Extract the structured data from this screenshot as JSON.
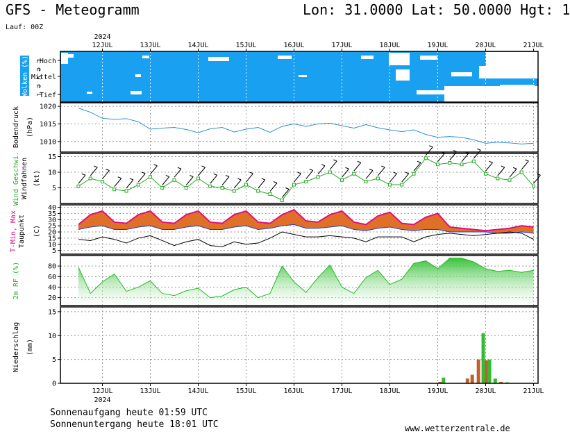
{
  "header": {
    "title": "GFS - Meteogramm",
    "coords": "Lon: 31.0000 Lat: 50.0000 Hgt: 1",
    "run": "Lauf: 00Z"
  },
  "footer": {
    "sunrise": "Sonnenaufgang heute 01:59 UTC",
    "sunset": "Sonnenuntergang heute 18:01 UTC",
    "site": "www.wetterzentrale.de"
  },
  "colors": {
    "cloud_blue": "#1aa0f0",
    "pressure_line": "#2a8fd8",
    "wind_green": "#22aa22",
    "tmax": "#e0107a",
    "tmin": "#1a3fcf",
    "temp_band": "#e07028",
    "dewpoint": "#000000",
    "rh_green": "#22bb22",
    "precip_green": "#33bb33",
    "precip_brown": "#c0602a"
  },
  "chart_data": {
    "type": "meteogram",
    "year": "2024",
    "x_ticks": [
      "12JUL",
      "13JUL",
      "14JUL",
      "15JUL",
      "16JUL",
      "17JUL",
      "18JUL",
      "19JUL",
      "20JUL",
      "21JUL"
    ],
    "panels": [
      {
        "id": "clouds",
        "ylabel": "Wolken (%)",
        "level_label": "L e v e l",
        "levels": [
          "Hoch",
          "Mittel",
          "Tief"
        ]
      },
      {
        "id": "pressure",
        "ylabel": "Bodendruck",
        "yunit": "(hPa)",
        "ylim": [
          1007,
          1021
        ],
        "yticks": [
          1010,
          1015,
          1020
        ],
        "x": [
          0,
          0.25,
          0.5,
          0.75,
          1,
          1.25,
          1.5,
          1.75,
          2,
          2.25,
          2.5,
          2.75,
          3,
          3.25,
          3.5,
          3.75,
          4,
          4.25,
          4.5,
          4.75,
          5,
          5.25,
          5.5,
          5.75,
          6,
          6.25,
          6.5,
          6.75,
          7,
          7.25,
          7.5,
          7.75,
          8,
          8.25,
          8.5,
          8.75,
          9,
          9.25,
          9.5
        ],
        "y": [
          1019.5,
          1018.3,
          1016.6,
          1016.3,
          1016.5,
          1015.6,
          1013.5,
          1013.8,
          1014.0,
          1013.4,
          1012.5,
          1013.6,
          1014.0,
          1012.7,
          1013.5,
          1014.0,
          1012.6,
          1014.3,
          1015.0,
          1014.3,
          1015.0,
          1015.2,
          1014.5,
          1013.8,
          1014.8,
          1013.9,
          1013.3,
          1012.8,
          1013.3,
          1012.0,
          1011.2,
          1011.4,
          1011.2,
          1010.5,
          1009.5,
          1009.8,
          1009.6,
          1009.3,
          1009.5
        ]
      },
      {
        "id": "wind",
        "ylabel": "Wind Geschwi.",
        "ylabel2": "Windfahnen",
        "yunit": "(kt)",
        "ylim": [
          0,
          16
        ],
        "yticks": [
          5,
          10,
          15
        ],
        "x": [
          0,
          0.25,
          0.5,
          0.75,
          1,
          1.25,
          1.5,
          1.75,
          2,
          2.25,
          2.5,
          2.75,
          3,
          3.25,
          3.5,
          3.75,
          4,
          4.25,
          4.5,
          4.75,
          5,
          5.25,
          5.5,
          5.75,
          6,
          6.25,
          6.5,
          6.75,
          7,
          7.25,
          7.5,
          7.75,
          8,
          8.25,
          8.5,
          8.75,
          9,
          9.25,
          9.5
        ],
        "y": [
          5.5,
          8,
          7,
          4.5,
          4,
          6,
          8.5,
          5,
          7.5,
          5,
          8,
          5.5,
          5,
          4,
          6,
          4,
          3,
          1,
          6,
          7,
          8.5,
          10,
          7.5,
          9.5,
          7,
          8,
          6,
          6,
          9.5,
          14.5,
          12.5,
          13,
          12.5,
          13.5,
          9.5,
          8,
          7.5,
          10,
          5.5
        ]
      },
      {
        "id": "temperature",
        "ylabel": "T-Min, Max",
        "ylabel2": "Taupunkt",
        "yunit": "(C)",
        "ylim": [
          2,
          42
        ],
        "yticks": [
          5,
          10,
          15,
          20,
          25,
          30,
          35,
          40
        ],
        "tmax_x": [
          0,
          0.25,
          0.5,
          0.75,
          1,
          1.25,
          1.5,
          1.75,
          2,
          2.25,
          2.5,
          2.75,
          3,
          3.25,
          3.5,
          3.75,
          4,
          4.25,
          4.5,
          4.75,
          5,
          5.25,
          5.5,
          5.75,
          6,
          6.25,
          6.5,
          6.75,
          7,
          7.25,
          7.5,
          7.75,
          8,
          8.25,
          8.5,
          8.75,
          9,
          9.25,
          9.5
        ],
        "tmax_y": [
          26,
          34,
          37,
          28,
          27,
          34,
          37,
          28,
          27,
          34,
          37,
          28,
          27,
          34,
          37,
          28,
          27,
          34,
          38,
          29,
          28,
          34,
          37,
          28,
          26,
          33,
          36,
          27,
          26,
          32,
          35,
          24,
          23,
          22,
          21,
          22,
          23,
          25,
          24
        ],
        "tmin_y": [
          22,
          24,
          25,
          22,
          22,
          24,
          25,
          22,
          22,
          24,
          25,
          22,
          22,
          24,
          25,
          22,
          23,
          25,
          26,
          23,
          23,
          24,
          25,
          22,
          21,
          23,
          24,
          22,
          21,
          22,
          22,
          20,
          20,
          20,
          20,
          19,
          19,
          20,
          19
        ],
        "dew_y": [
          14,
          13,
          16,
          14,
          11,
          15,
          17,
          13,
          9,
          12,
          14,
          9,
          8,
          12,
          10,
          11,
          15,
          20,
          18,
          16,
          16,
          17,
          16,
          15,
          12,
          16,
          16,
          16,
          12,
          16,
          18,
          19,
          18,
          17,
          18,
          19,
          20,
          19,
          14
        ]
      },
      {
        "id": "humidity",
        "ylabel": "2m RF (%)",
        "ylim": [
          5,
          100
        ],
        "yticks": [
          20,
          40,
          60,
          80
        ],
        "x": [
          0,
          0.25,
          0.5,
          0.75,
          1,
          1.25,
          1.5,
          1.75,
          2,
          2.25,
          2.5,
          2.75,
          3,
          3.25,
          3.5,
          3.75,
          4,
          4.25,
          4.5,
          4.75,
          5,
          5.25,
          5.5,
          5.75,
          6,
          6.25,
          6.5,
          6.75,
          7,
          7.25,
          7.5,
          7.75,
          8,
          8.25,
          8.5,
          8.75,
          9,
          9.25,
          9.5
        ],
        "y": [
          78,
          28,
          50,
          65,
          32,
          40,
          52,
          28,
          24,
          33,
          38,
          20,
          23,
          35,
          40,
          20,
          28,
          80,
          50,
          30,
          58,
          82,
          40,
          28,
          58,
          72,
          45,
          55,
          85,
          90,
          75,
          95,
          95,
          88,
          75,
          70,
          72,
          68,
          72
        ]
      },
      {
        "id": "precip",
        "ylabel": "Niederschlag",
        "yunit": "(mm)",
        "ylim": [
          0,
          16
        ],
        "yticks": [
          0,
          5,
          10,
          15
        ],
        "bars": [
          {
            "x": 7.55,
            "value": 0.3,
            "kind": "brown"
          },
          {
            "x": 7.62,
            "value": 1.2,
            "kind": "green"
          },
          {
            "x": 8.12,
            "value": 1.0,
            "kind": "brown"
          },
          {
            "x": 8.22,
            "value": 1.8,
            "kind": "brown"
          },
          {
            "x": 8.35,
            "value": 5.0,
            "kind": "brown"
          },
          {
            "x": 8.45,
            "value": 10.5,
            "kind": "green"
          },
          {
            "x": 8.52,
            "value": 4.8,
            "kind": "brown"
          },
          {
            "x": 8.58,
            "value": 5.0,
            "kind": "green"
          },
          {
            "x": 8.7,
            "value": 1.0,
            "kind": "green"
          },
          {
            "x": 8.82,
            "value": 0.3,
            "kind": "brown"
          },
          {
            "x": 8.95,
            "value": 0.2,
            "kind": "green"
          }
        ]
      }
    ]
  }
}
